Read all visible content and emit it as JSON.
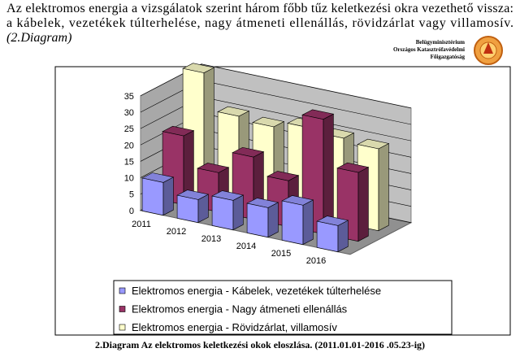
{
  "header": {
    "line1": "Az elektromos energia a vizsgálatok szerint három főbb tűz keletkezési okra vezethető vissza:",
    "line2": "a kábelek, vezetékek túlterhelése, nagy átmeneti ellenállás, rövidzárlat vagy villamosív.",
    "line3": "(2.Diagram)"
  },
  "logo": {
    "line1": "Belügyminisztérium",
    "line2": "Országos Katasztrófavédelmi",
    "line3": "Főigazgatóság"
  },
  "caption": "2.Diagram Az elektromos keletkezési okok eloszlása. (2011.01.01-2016 .05.23-ig)",
  "chart_data": {
    "type": "bar3d",
    "categories": [
      "2011",
      "2012",
      "2013",
      "2014",
      "2015",
      "2016"
    ],
    "series": [
      {
        "name": "Elektromos energia - Kábelek, vezetékek túlterhelése",
        "color": "#9999ff",
        "values": [
          10,
          7,
          9,
          9,
          12,
          8
        ]
      },
      {
        "name": "Elektromos energia - Nagy átmeneti ellenállás",
        "color": "#993366",
        "values": [
          21,
          12,
          19,
          14,
          35,
          21
        ]
      },
      {
        "name": "Elektromos energia - Rövidzárlat, villamosív",
        "color": "#ffffcc",
        "values": [
          37,
          26,
          25,
          27,
          26,
          25
        ]
      }
    ],
    "ylim": [
      0,
      35
    ],
    "yticks": [
      0,
      5,
      10,
      15,
      20,
      25,
      30,
      35
    ],
    "grid": true,
    "legend": "bottom"
  }
}
